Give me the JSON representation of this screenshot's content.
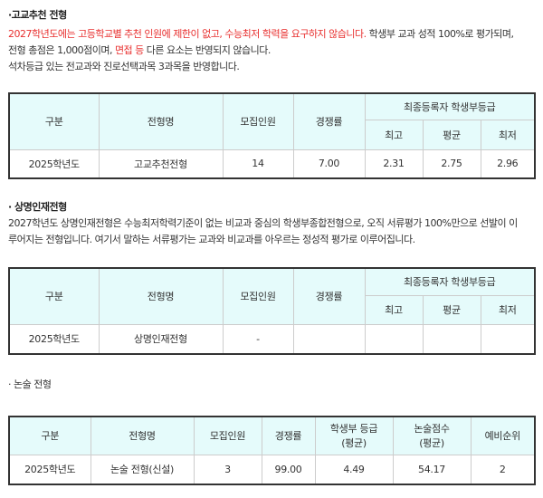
{
  "s1": {
    "title": "·고교추천 전형",
    "red1": "2027학년도에는 고등학교별 추천 인원에 제한이 없고, 수능최저 학력을 요구하지 않습니다.",
    "black1": " 학생부 교과 성적 100%로 평가되며,",
    "line2a": "전형 총점은 1,000점이며, ",
    "red2": "면접 등",
    "line2b": " 다른 요소는 반영되지 않습니다.",
    "line3": "석차등급 있는 전교과와 진로선택과목 3과목을 반영합니다.",
    "table": {
      "headers": [
        "구분",
        "전형명",
        "모집인원",
        "경쟁률",
        "최종등록자 학생부등급"
      ],
      "sub": [
        "최고",
        "평균",
        "최저"
      ],
      "row": [
        "2025학년도",
        "고교추천전형",
        "14",
        "7.00",
        "2.31",
        "2.75",
        "2.96"
      ]
    }
  },
  "s2": {
    "title": "· 상명인재전형",
    "line1": "2027학년도 상명인재전형은 수능최저학력기준이 없는 비교과 중심의 학생부종합전형으로, 오직 서류평가 100%만으로 선발이 이",
    "line2": "루어지는 전형입니다. 여기서 말하는 서류평가는 교과와 비교과를 아우르는 정성적 평가로 이루어집니다.",
    "table": {
      "headers": [
        "구분",
        "전형명",
        "모집인원",
        "경쟁률",
        "최종등록자 학생부등급"
      ],
      "sub": [
        "최고",
        "평균",
        "최저"
      ],
      "row": [
        "2025학년도",
        "상명인재전형",
        "-",
        "",
        "",
        "",
        ""
      ]
    }
  },
  "s3": {
    "title": "· 논술 전형",
    "table": {
      "headers": [
        "구분",
        "전형명",
        "모집인원",
        "경쟁률",
        "학생부 등급\n(평균)",
        "논술점수\n(평균)",
        "예비순위"
      ],
      "row": [
        "2025학년도",
        "논술 전형(신설)",
        "3",
        "99.00",
        "4.49",
        "54.17",
        "2"
      ]
    }
  }
}
